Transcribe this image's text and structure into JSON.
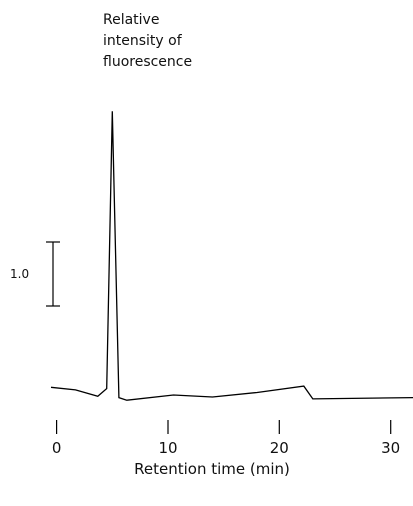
{
  "chart_data": {
    "type": "line",
    "title": "",
    "ylabel_lines": [
      "Relative",
      "intensity of",
      "fluorescence"
    ],
    "xlabel": "Retention time (min)",
    "xlim": [
      -0.5,
      32
    ],
    "x_ticks": [
      0,
      10,
      20,
      30
    ],
    "x_tick_labels": [
      "0",
      "10",
      "20",
      "30"
    ],
    "scale_bar": {
      "label": "1.0",
      "value": 1.0
    },
    "ylim": [
      -0.22,
      4.62
    ],
    "grid": false,
    "legend": "none",
    "line_color": "#000000",
    "series": [
      {
        "x": [
          -0.5,
          1.7,
          3.7,
          4.5,
          5.0,
          5.6,
          6.3,
          10.5,
          14.0,
          18.0,
          22.2,
          23.0,
          32.0
        ],
        "y": [
          0.04,
          0.0,
          -0.1,
          0.02,
          4.35,
          -0.12,
          -0.16,
          -0.08,
          -0.11,
          -0.04,
          0.06,
          -0.14,
          -0.12
        ]
      }
    ]
  }
}
